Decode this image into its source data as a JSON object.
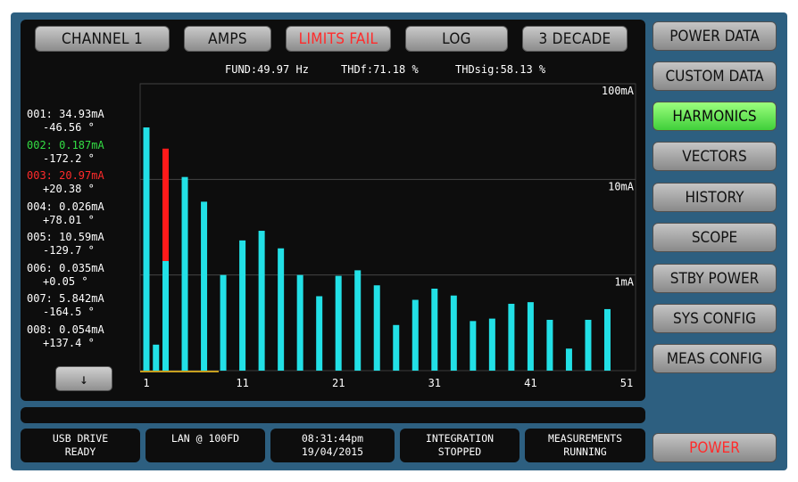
{
  "top_buttons": [
    "CHANNEL 1",
    "AMPS",
    "LIMITS FAIL",
    "LOG",
    "3 DECADE"
  ],
  "stats": {
    "fund": "FUND:49.97 Hz",
    "thdf": "THDf:71.18 %",
    "thdsig": "THDsig:58.13 %"
  },
  "harmonic_list": [
    {
      "line1": "001: 34.93mA",
      "line2": "-46.56 °",
      "color": "#ffffff"
    },
    {
      "line1": "002: 0.187mA",
      "line2": "-172.2 °",
      "color": "#33dd44"
    },
    {
      "line1": "003: 20.97mA",
      "line2": "+20.38 °",
      "color": "#ff2b2b"
    },
    {
      "line1": "004: 0.026mA",
      "line2": "+78.01 °",
      "color": "#ffffff"
    },
    {
      "line1": "005: 10.59mA",
      "line2": "-129.7 °",
      "color": "#ffffff"
    },
    {
      "line1": "006: 0.035mA",
      "line2": "+0.05 °",
      "color": "#ffffff"
    },
    {
      "line1": "007: 5.842mA",
      "line2": "-164.5 °",
      "color": "#ffffff"
    },
    {
      "line1": "008: 0.054mA",
      "line2": "+137.4 °",
      "color": "#ffffff"
    }
  ],
  "down_button": "↓",
  "side_menu": [
    "POWER DATA",
    "CUSTOM DATA",
    "HARMONICS",
    "VECTORS",
    "HISTORY",
    "SCOPE",
    "STBY POWER",
    "SYS CONFIG",
    "MEAS CONFIG"
  ],
  "active_menu": "HARMONICS",
  "power_button": "POWER",
  "status_items": [
    {
      "line1": "USB DRIVE",
      "line2": "READY"
    },
    {
      "line1": "LAN @ 100FD",
      "line2": ""
    },
    {
      "line1": "08:31:44pm",
      "line2": "19/04/2015"
    },
    {
      "line1": "INTEGRATION",
      "line2": "STOPPED"
    },
    {
      "line1": "MEASUREMENTS",
      "line2": "RUNNING"
    }
  ],
  "colors": {
    "bar": "#22e0e6",
    "limit_fail_bar": "#ff1a1a",
    "active_menu": "#6ee85a",
    "fail_text": "#ff2b2b",
    "frame": "#2d5f80"
  },
  "chart_data": {
    "type": "bar",
    "scale": "log",
    "ylim": [
      0.1,
      100
    ],
    "y_ticks": [
      {
        "value": 100,
        "label": "100mA"
      },
      {
        "value": 10,
        "label": "10mA"
      },
      {
        "value": 1,
        "label": "1mA"
      }
    ],
    "x_ticks": [
      "1",
      "11",
      "21",
      "31",
      "41",
      "51"
    ],
    "x_tick_values": [
      1,
      11,
      21,
      31,
      41,
      51
    ],
    "x": [
      1,
      2,
      3,
      5,
      7,
      9,
      11,
      13,
      15,
      17,
      19,
      21,
      23,
      25,
      27,
      29,
      31,
      33,
      35,
      37,
      39,
      41,
      43,
      45,
      47,
      49
    ],
    "values": [
      34.93,
      0.187,
      1.4,
      10.59,
      5.842,
      1.0,
      2.3,
      2.9,
      1.9,
      1.0,
      0.6,
      0.98,
      1.12,
      0.78,
      0.3,
      0.55,
      0.72,
      0.61,
      0.33,
      0.35,
      0.5,
      0.52,
      0.34,
      0.17,
      0.34,
      0.44
    ],
    "fail_segment": {
      "harmonic": 3,
      "from": 1.4,
      "to": 20.97
    }
  }
}
